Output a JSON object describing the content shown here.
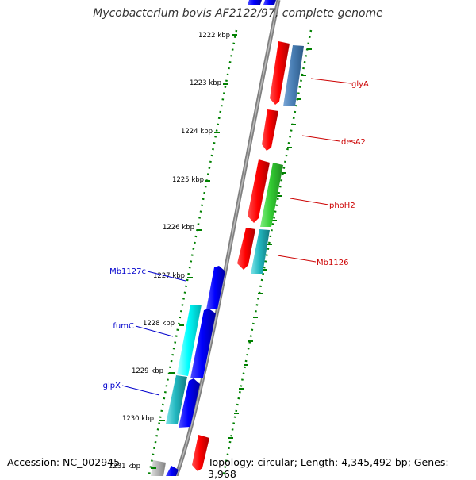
{
  "title": "Mycobacterium bovis AF2122/97, complete genome",
  "accession": "Accession: NC_002945",
  "summary": "Topology: circular; Length: 4,345,492 bp; Genes: 3,968",
  "ticks": [
    {
      "label": "1222 kbp"
    },
    {
      "label": "1223 kbp"
    },
    {
      "label": "1224 kbp"
    },
    {
      "label": "1225 kbp"
    },
    {
      "label": "1226 kbp"
    },
    {
      "label": "1227 kbp"
    },
    {
      "label": "1228 kbp"
    },
    {
      "label": "1229 kbp"
    },
    {
      "label": "1230 kbp"
    },
    {
      "label": "1231 kbp"
    }
  ],
  "gene_labels": [
    {
      "name": "glyA",
      "color": "#cc0000"
    },
    {
      "name": "desA2",
      "color": "#cc0000"
    },
    {
      "name": "phoH2",
      "color": "#cc0000"
    },
    {
      "name": "Mb1126",
      "color": "#cc0000"
    },
    {
      "name": "Mb1127c",
      "color": "#0000cc"
    },
    {
      "name": "fumC",
      "color": "#0000cc"
    },
    {
      "name": "glpX",
      "color": "#0000cc"
    }
  ],
  "colors": {
    "forward_gene": "#ff0000",
    "reverse_gene": "#0000ff",
    "steel_blue_gene": "#4a7fb5",
    "green_gene": "#33cc33",
    "teal_gene": "#22b8c0",
    "cyan_gene": "#00ffff",
    "backbone": "#808080",
    "tick_marks": "#008000"
  }
}
